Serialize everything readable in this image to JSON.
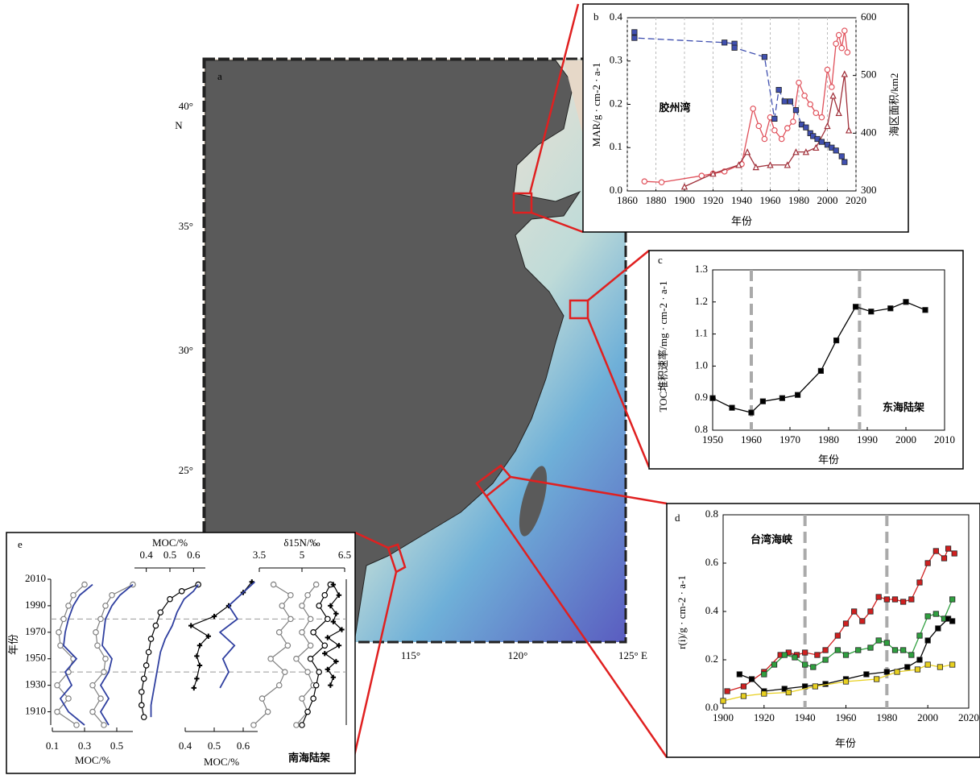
{
  "map": {
    "label": "a",
    "lat_ticks": [
      "40°",
      "35°",
      "30°",
      "25°"
    ],
    "lat_unit": "N",
    "lon_ticks": [
      "115°",
      "120°",
      "125° E"
    ]
  },
  "chart_data": [
    {
      "type": "line",
      "label": "b",
      "annotation": "胶州湾",
      "xlabel": "年份",
      "ylabel": "MAR/g · cm-2 · a-1",
      "y2label": "海区面积/km2",
      "xlim": [
        1860,
        2020
      ],
      "xticks": [
        1860,
        1880,
        1900,
        1920,
        1940,
        1960,
        1980,
        2000,
        2020
      ],
      "ylim": [
        0,
        0.4
      ],
      "yticks": [
        {
          "value": 0,
          "label": "0.0"
        },
        0.1,
        0.2,
        0.3,
        0.4
      ],
      "y2lim": [
        300,
        600
      ],
      "y2ticks": [
        300,
        400,
        500,
        600
      ],
      "grid": true,
      "series": [
        {
          "color": "#e0505a",
          "marker": "circle",
          "x": [
            1872,
            1884,
            1912,
            1920,
            1928,
            1940,
            1948,
            1952,
            1956,
            1960,
            1963,
            1968,
            1972,
            1976,
            1980,
            1984,
            1988,
            1992,
            1996,
            2000,
            2003,
            2006,
            2008,
            2010,
            2012,
            2014
          ],
          "values": [
            0.022,
            0.02,
            0.035,
            0.04,
            0.045,
            0.062,
            0.19,
            0.15,
            0.12,
            0.17,
            0.14,
            0.12,
            0.145,
            0.16,
            0.25,
            0.22,
            0.2,
            0.18,
            0.17,
            0.28,
            0.24,
            0.34,
            0.36,
            0.33,
            0.37,
            0.32
          ]
        },
        {
          "color": "#a0303a",
          "marker": "triangle",
          "x": [
            1900,
            1920,
            1938,
            1944,
            1950,
            1960,
            1972,
            1978,
            1985,
            1992,
            2000,
            2004,
            2008,
            2012,
            2015
          ],
          "values": [
            0.01,
            0.04,
            0.06,
            0.09,
            0.055,
            0.06,
            0.06,
            0.09,
            0.09,
            0.1,
            0.15,
            0.22,
            0.18,
            0.27,
            0.14
          ]
        },
        {
          "color": "#4050b0",
          "marker": "square",
          "linestyle": "dashed",
          "axis": "y2",
          "x": [
            1865,
            1865,
            1928,
            1935,
            1935,
            1956,
            1963,
            1966,
            1970,
            1974,
            1978,
            1982,
            1985,
            1988,
            1990,
            1993,
            1996,
            2000,
            2003,
            2006,
            2010,
            2012
          ],
          "values": [
            575,
            565,
            557,
            555,
            548,
            532,
            425,
            475,
            455,
            455,
            440,
            415,
            410,
            400,
            395,
            390,
            385,
            380,
            375,
            370,
            360,
            350
          ]
        }
      ]
    },
    {
      "type": "line",
      "label": "c",
      "annotation": "东海陆架",
      "xlabel": "年份",
      "ylabel": "TOC堆积速率/mg · cm-2 · a-1",
      "xlim": [
        1950,
        2010
      ],
      "xticks": [
        1950,
        1960,
        1970,
        1980,
        1990,
        2000,
        2010
      ],
      "ylim": [
        0.8,
        1.3
      ],
      "yticks": [
        0.8,
        0.9,
        {
          "value": 1,
          "label": "1.0"
        },
        1.1,
        1.2,
        1.3
      ],
      "vlines": [
        1960,
        1988
      ],
      "series": [
        {
          "color": "#000000",
          "marker": "square",
          "x": [
            1950,
            1955,
            1960,
            1963,
            1968,
            1972,
            1978,
            1982,
            1987,
            1991,
            1996,
            2000,
            2005
          ],
          "values": [
            0.9,
            0.87,
            0.855,
            0.89,
            0.9,
            0.91,
            0.985,
            1.08,
            1.185,
            1.17,
            1.18,
            1.2,
            1.175
          ]
        }
      ]
    },
    {
      "type": "line",
      "label": "d",
      "annotation": "台湾海峡",
      "xlabel": "年份",
      "ylabel": "r(i)/g · cm-2 · a-1",
      "xlim": [
        1900,
        2020
      ],
      "xticks": [
        1900,
        1920,
        1940,
        1960,
        1980,
        2000,
        2020
      ],
      "ylim": [
        0,
        0.8
      ],
      "yticks": [
        {
          "value": 0,
          "label": "0.0"
        },
        0.2,
        0.4,
        0.6,
        0.8
      ],
      "vlines": [
        1940,
        1980
      ],
      "series": [
        {
          "color": "#d02020",
          "marker": "square",
          "x": [
            1902,
            1910,
            1920,
            1928,
            1932,
            1936,
            1940,
            1946,
            1950,
            1956,
            1960,
            1964,
            1968,
            1972,
            1976,
            1980,
            1984,
            1988,
            1992,
            1996,
            2000,
            2004,
            2008,
            2010,
            2013
          ],
          "values": [
            0.07,
            0.09,
            0.15,
            0.22,
            0.23,
            0.22,
            0.23,
            0.22,
            0.24,
            0.3,
            0.35,
            0.4,
            0.36,
            0.4,
            0.46,
            0.45,
            0.45,
            0.44,
            0.45,
            0.52,
            0.6,
            0.65,
            0.62,
            0.66,
            0.64
          ]
        },
        {
          "color": "#30a040",
          "marker": "square",
          "x": [
            1920,
            1925,
            1930,
            1935,
            1940,
            1944,
            1950,
            1956,
            1960,
            1966,
            1972,
            1976,
            1980,
            1984,
            1988,
            1992,
            1996,
            2000,
            2004,
            2008,
            2012
          ],
          "values": [
            0.14,
            0.18,
            0.22,
            0.21,
            0.18,
            0.17,
            0.2,
            0.24,
            0.22,
            0.24,
            0.25,
            0.28,
            0.27,
            0.24,
            0.24,
            0.22,
            0.3,
            0.38,
            0.39,
            0.37,
            0.45
          ]
        },
        {
          "color": "#000000",
          "marker": "square",
          "x": [
            1908,
            1914,
            1920,
            1930,
            1940,
            1950,
            1960,
            1970,
            1980,
            1990,
            1996,
            2000,
            2005,
            2010,
            2012
          ],
          "values": [
            0.14,
            0.12,
            0.07,
            0.08,
            0.09,
            0.1,
            0.12,
            0.14,
            0.15,
            0.17,
            0.2,
            0.28,
            0.33,
            0.37,
            0.36
          ]
        },
        {
          "color": "#e8d020",
          "marker": "square",
          "x": [
            1900,
            1910,
            1920,
            1932,
            1945,
            1960,
            1975,
            1985,
            1995,
            2000,
            2006,
            2012
          ],
          "values": [
            0.03,
            0.05,
            0.06,
            0.065,
            0.09,
            0.11,
            0.12,
            0.15,
            0.16,
            0.18,
            0.17,
            0.18
          ]
        }
      ]
    },
    {
      "type": "profile",
      "label": "e",
      "annotation": "南海陆架",
      "ylabel": "年份",
      "ylim": [
        1900,
        2010
      ],
      "yticks": [
        1910,
        1930,
        1950,
        1970,
        1990,
        2010
      ],
      "hlines": [
        1980,
        1940
      ],
      "xaxes": [
        {
          "position": "bottom",
          "xlabel": "MOC/%",
          "xlim": [
            0.1,
            0.6
          ],
          "xticks": [
            0.1,
            0.3,
            0.5
          ]
        },
        {
          "position": "top",
          "xlabel": "MOC/%",
          "xlim": [
            0.35,
            0.65
          ],
          "xticks": [
            0.4,
            0.5,
            0.6
          ]
        },
        {
          "position": "bottom",
          "xlabel": "MOC/%",
          "xlim": [
            0.4,
            0.65
          ],
          "xticks": [
            0.4,
            0.5,
            0.6
          ]
        },
        {
          "position": "top",
          "xlabel": "δ15N/‰",
          "xlim": [
            3.5,
            6.5
          ],
          "xticks": [
            3.5,
            5.0,
            6.5
          ]
        }
      ],
      "series": [
        {
          "color": "#808080",
          "marker": "circle",
          "xaxis": 0,
          "years": [
            1900,
            1910,
            1920,
            1930,
            1940,
            1950,
            1960,
            1970,
            1980,
            1990,
            1998,
            2006
          ],
          "values": [
            0.25,
            0.13,
            0.2,
            0.13,
            0.2,
            0.23,
            0.15,
            0.14,
            0.17,
            0.2,
            0.23,
            0.3
          ]
        },
        {
          "color": "#3040a0",
          "marker": "none",
          "xaxis": 0,
          "years": [
            1900,
            1910,
            1920,
            1930,
            1940,
            1950,
            1960,
            1970,
            1980,
            1990,
            1998,
            2006
          ],
          "values": [
            0.3,
            0.2,
            0.15,
            0.22,
            0.18,
            0.25,
            0.17,
            0.18,
            0.2,
            0.23,
            0.27,
            0.35
          ]
        },
        {
          "color": "#808080",
          "marker": "circle",
          "xaxis": 0,
          "years": [
            1900,
            1910,
            1920,
            1930,
            1940,
            1950,
            1960,
            1970,
            1980,
            1990,
            1998,
            2006
          ],
          "values": [
            0.42,
            0.35,
            0.4,
            0.35,
            0.42,
            0.43,
            0.38,
            0.37,
            0.4,
            0.43,
            0.47,
            0.6
          ]
        },
        {
          "color": "#3040a0",
          "marker": "none",
          "xaxis": 0,
          "years": [
            1900,
            1910,
            1920,
            1930,
            1940,
            1950,
            1960,
            1970,
            1980,
            1990,
            1998,
            2006
          ],
          "values": [
            0.45,
            0.4,
            0.45,
            0.4,
            0.45,
            0.47,
            0.41,
            0.42,
            0.43,
            0.47,
            0.52,
            0.6
          ]
        },
        {
          "color": "#000000",
          "marker": "circle",
          "xaxis": 1,
          "years": [
            1906,
            1915,
            1925,
            1935,
            1945,
            1955,
            1965,
            1975,
            1985,
            1995,
            2001,
            2006
          ],
          "values": [
            0.39,
            0.38,
            0.38,
            0.39,
            0.4,
            0.41,
            0.42,
            0.44,
            0.46,
            0.5,
            0.55,
            0.62
          ]
        },
        {
          "color": "#3040a0",
          "marker": "none",
          "xaxis": 1,
          "years": [
            1906,
            1915,
            1925,
            1935,
            1945,
            1955,
            1965,
            1975,
            1985,
            1995,
            2001,
            2006
          ],
          "values": [
            0.42,
            0.42,
            0.43,
            0.44,
            0.45,
            0.46,
            0.48,
            0.51,
            0.53,
            0.56,
            0.6,
            0.62
          ]
        },
        {
          "color": "#000000",
          "marker": "cross",
          "xaxis": 2,
          "years": [
            1928,
            1935,
            1945,
            1952,
            1960,
            1967,
            1975,
            1982,
            1990,
            2000,
            2008
          ],
          "values": [
            0.43,
            0.44,
            0.45,
            0.44,
            0.45,
            0.48,
            0.42,
            0.5,
            0.55,
            0.6,
            0.63
          ]
        },
        {
          "color": "#3040a0",
          "marker": "none",
          "xaxis": 2,
          "years": [
            1928,
            1940,
            1950,
            1960,
            1970,
            1980,
            1990,
            2000,
            2008
          ],
          "values": [
            0.52,
            0.55,
            0.53,
            0.57,
            0.52,
            0.58,
            0.55,
            0.6,
            0.64
          ]
        },
        {
          "color": "#808080",
          "marker": "circle",
          "xaxis": 3,
          "years": [
            1900,
            1910,
            1920,
            1930,
            1940,
            1950,
            1960,
            1970,
            1980,
            1990,
            1998,
            2006
          ],
          "values": [
            3.3,
            3.8,
            3.6,
            4.2,
            4.4,
            3.9,
            4.5,
            4.2,
            4.6,
            4.3,
            4.6,
            4.0
          ]
        },
        {
          "color": "#808080",
          "marker": "circle",
          "xaxis": 3,
          "years": [
            1900,
            1910,
            1920,
            1930,
            1940,
            1950,
            1960,
            1970,
            1980,
            1990,
            1998,
            2006
          ],
          "values": [
            4.8,
            5.2,
            5.0,
            5.4,
            5.2,
            4.8,
            5.3,
            5.0,
            5.3,
            5.0,
            5.2,
            5.5
          ]
        },
        {
          "color": "#000000",
          "marker": "circle",
          "xaxis": 3,
          "years": [
            1900,
            1910,
            1920,
            1930,
            1940,
            1950,
            1960,
            1970,
            1980,
            1990,
            1998,
            2006
          ],
          "values": [
            5.0,
            5.2,
            5.4,
            5.5,
            5.6,
            5.3,
            5.8,
            5.4,
            5.9,
            5.6,
            5.8,
            6.0
          ]
        },
        {
          "color": "#000000",
          "marker": "cross",
          "xaxis": 3,
          "years": [
            1930,
            1936,
            1942,
            1948,
            1954,
            1960,
            1966,
            1972,
            1978,
            1984,
            1990,
            1998,
            2006
          ],
          "values": [
            6.0,
            6.1,
            5.9,
            6.2,
            5.8,
            6.3,
            5.9,
            6.4,
            6.1,
            6.2,
            6.0,
            6.3,
            6.1
          ]
        }
      ]
    }
  ]
}
